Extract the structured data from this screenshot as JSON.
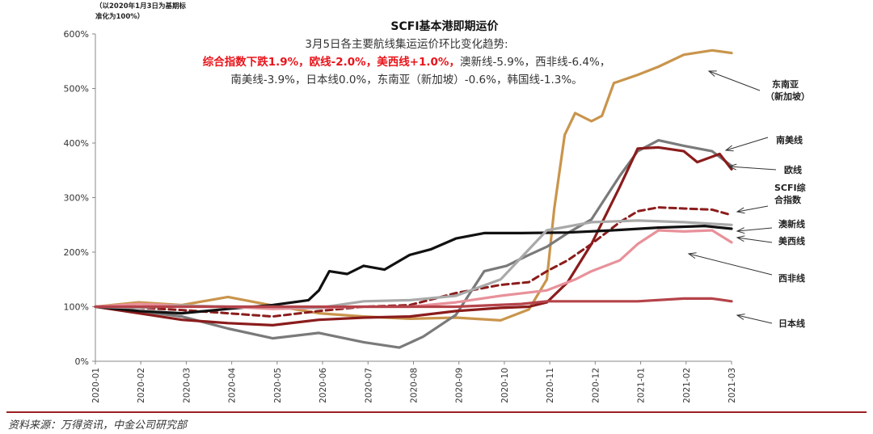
{
  "note": "（以2020年1月3日为基期标准化为100%）",
  "title": "SCFI基本港即期运价",
  "annotation": {
    "intro": "3月5日各主要航线集运运价环比变化趋势:",
    "highlight": "综合指数下跌1.9%，欧线-2.0%，美西线+1.0%，",
    "rest": "澳新线-5.9%，西非线-6.4%，南美线-3.9%，日本线0.0%，东南亚（新加坡）-0.6%，韩国线-1.3%。"
  },
  "source": "资料来源：万得资讯，中金公司研究部",
  "chart_data": {
    "type": "line",
    "title": "SCFI基本港即期运价",
    "y_ticks": [
      "0%",
      "100%",
      "200%",
      "300%",
      "400%",
      "500%",
      "600%"
    ],
    "ylim": [
      0,
      600
    ],
    "x_ticks": [
      "2020-01",
      "2020-02",
      "2020-03",
      "2020-04",
      "2020-05",
      "2020-06",
      "2020-07",
      "2020-08",
      "2020-09",
      "2020-10",
      "2020-11",
      "2020-12",
      "2021-01",
      "2021-02",
      "2021-03"
    ],
    "xlim": [
      "2020-01-03",
      "2021-03-05"
    ],
    "series": [
      {
        "name": "东南亚（新加坡）",
        "color": "#c9954c",
        "dashed": false,
        "points": [
          [
            "2020-01-03",
            100
          ],
          [
            "2020-02-01",
            108
          ],
          [
            "2020-03-01",
            103
          ],
          [
            "2020-04-01",
            118
          ],
          [
            "2020-05-01",
            102
          ],
          [
            "2020-06-01",
            88
          ],
          [
            "2020-07-01",
            82
          ],
          [
            "2020-08-01",
            78
          ],
          [
            "2020-09-01",
            80
          ],
          [
            "2020-10-01",
            75
          ],
          [
            "2020-10-20",
            95
          ],
          [
            "2020-11-01",
            150
          ],
          [
            "2020-11-06",
            280
          ],
          [
            "2020-11-13",
            415
          ],
          [
            "2020-11-20",
            455
          ],
          [
            "2020-12-01",
            440
          ],
          [
            "2020-12-08",
            450
          ],
          [
            "2020-12-16",
            510
          ],
          [
            "2021-01-01",
            525
          ],
          [
            "2021-01-15",
            540
          ],
          [
            "2021-02-01",
            562
          ],
          [
            "2021-02-20",
            570
          ],
          [
            "2021-03-05",
            565
          ]
        ]
      },
      {
        "name": "南美线",
        "color": "#7a7a7a",
        "dashed": false,
        "points": [
          [
            "2020-01-03",
            100
          ],
          [
            "2020-02-01",
            92
          ],
          [
            "2020-03-01",
            82
          ],
          [
            "2020-04-01",
            60
          ],
          [
            "2020-05-01",
            42
          ],
          [
            "2020-06-01",
            52
          ],
          [
            "2020-07-01",
            35
          ],
          [
            "2020-07-25",
            25
          ],
          [
            "2020-08-10",
            45
          ],
          [
            "2020-09-01",
            85
          ],
          [
            "2020-09-20",
            165
          ],
          [
            "2020-10-05",
            175
          ],
          [
            "2020-10-20",
            195
          ],
          [
            "2020-11-01",
            210
          ],
          [
            "2020-11-15",
            235
          ],
          [
            "2020-12-01",
            260
          ],
          [
            "2020-12-20",
            340
          ],
          [
            "2021-01-01",
            385
          ],
          [
            "2021-01-15",
            405
          ],
          [
            "2021-02-01",
            395
          ],
          [
            "2021-02-20",
            385
          ],
          [
            "2021-03-05",
            358
          ]
        ]
      },
      {
        "name": "欧线",
        "color": "#8b1c1c",
        "dashed": false,
        "points": [
          [
            "2020-01-03",
            100
          ],
          [
            "2020-02-01",
            88
          ],
          [
            "2020-03-01",
            76
          ],
          [
            "2020-04-01",
            70
          ],
          [
            "2020-05-01",
            66
          ],
          [
            "2020-06-01",
            76
          ],
          [
            "2020-07-01",
            80
          ],
          [
            "2020-08-01",
            82
          ],
          [
            "2020-09-01",
            92
          ],
          [
            "2020-10-01",
            98
          ],
          [
            "2020-10-20",
            100
          ],
          [
            "2020-11-01",
            108
          ],
          [
            "2020-11-15",
            145
          ],
          [
            "2020-12-01",
            215
          ],
          [
            "2020-12-20",
            320
          ],
          [
            "2021-01-01",
            390
          ],
          [
            "2021-01-15",
            392
          ],
          [
            "2021-02-01",
            385
          ],
          [
            "2021-02-10",
            365
          ],
          [
            "2021-02-25",
            380
          ],
          [
            "2021-03-05",
            352
          ]
        ]
      },
      {
        "name": "SCFI综合指数",
        "color": "#8b1c1c",
        "dashed": true,
        "points": [
          [
            "2020-01-03",
            100
          ],
          [
            "2020-02-01",
            98
          ],
          [
            "2020-03-01",
            94
          ],
          [
            "2020-04-01",
            88
          ],
          [
            "2020-05-01",
            82
          ],
          [
            "2020-06-01",
            92
          ],
          [
            "2020-07-01",
            100
          ],
          [
            "2020-08-01",
            103
          ],
          [
            "2020-09-01",
            125
          ],
          [
            "2020-10-01",
            140
          ],
          [
            "2020-10-20",
            145
          ],
          [
            "2020-11-01",
            165
          ],
          [
            "2020-11-15",
            185
          ],
          [
            "2020-12-01",
            215
          ],
          [
            "2020-12-20",
            255
          ],
          [
            "2021-01-01",
            275
          ],
          [
            "2021-01-15",
            282
          ],
          [
            "2021-02-01",
            280
          ],
          [
            "2021-02-20",
            278
          ],
          [
            "2021-03-05",
            268
          ]
        ]
      },
      {
        "name": "澳新线",
        "color": "#111111",
        "dashed": false,
        "points": [
          [
            "2020-01-03",
            100
          ],
          [
            "2020-02-01",
            92
          ],
          [
            "2020-03-01",
            88
          ],
          [
            "2020-04-01",
            96
          ],
          [
            "2020-05-01",
            103
          ],
          [
            "2020-05-25",
            112
          ],
          [
            "2020-06-01",
            130
          ],
          [
            "2020-06-08",
            165
          ],
          [
            "2020-06-20",
            160
          ],
          [
            "2020-07-01",
            175
          ],
          [
            "2020-07-15",
            168
          ],
          [
            "2020-08-01",
            195
          ],
          [
            "2020-08-15",
            205
          ],
          [
            "2020-09-01",
            225
          ],
          [
            "2020-09-20",
            235
          ],
          [
            "2020-10-15",
            235
          ],
          [
            "2020-11-15",
            236
          ],
          [
            "2020-12-15",
            240
          ],
          [
            "2021-01-15",
            245
          ],
          [
            "2021-02-15",
            248
          ],
          [
            "2021-03-05",
            243
          ]
        ]
      },
      {
        "name": "美西线",
        "color": "#e8919a",
        "dashed": false,
        "points": [
          [
            "2020-01-03",
            100
          ],
          [
            "2020-02-01",
            105
          ],
          [
            "2020-03-01",
            102
          ],
          [
            "2020-04-01",
            100
          ],
          [
            "2020-05-01",
            96
          ],
          [
            "2020-06-01",
            98
          ],
          [
            "2020-07-01",
            100
          ],
          [
            "2020-08-01",
            100
          ],
          [
            "2020-09-01",
            108
          ],
          [
            "2020-10-01",
            120
          ],
          [
            "2020-11-01",
            130
          ],
          [
            "2020-11-20",
            150
          ],
          [
            "2020-12-01",
            165
          ],
          [
            "2020-12-20",
            185
          ],
          [
            "2021-01-01",
            215
          ],
          [
            "2021-01-15",
            240
          ],
          [
            "2021-02-01",
            238
          ],
          [
            "2021-02-20",
            240
          ],
          [
            "2021-03-05",
            218
          ]
        ]
      },
      {
        "name": "西非线",
        "color": "#a9a9a9",
        "dashed": false,
        "points": [
          [
            "2020-01-03",
            100
          ],
          [
            "2020-02-01",
            98
          ],
          [
            "2020-03-01",
            102
          ],
          [
            "2020-04-01",
            100
          ],
          [
            "2020-05-01",
            100
          ],
          [
            "2020-06-01",
            98
          ],
          [
            "2020-07-01",
            110
          ],
          [
            "2020-08-01",
            112
          ],
          [
            "2020-09-01",
            120
          ],
          [
            "2020-10-01",
            150
          ],
          [
            "2020-11-01",
            240
          ],
          [
            "2020-12-01",
            255
          ],
          [
            "2021-01-01",
            258
          ],
          [
            "2021-02-01",
            255
          ],
          [
            "2021-03-05",
            250
          ]
        ]
      },
      {
        "name": "日本线",
        "color": "#b5434a",
        "dashed": false,
        "points": [
          [
            "2020-01-03",
            100
          ],
          [
            "2020-03-01",
            100
          ],
          [
            "2020-05-01",
            100
          ],
          [
            "2020-07-01",
            100
          ],
          [
            "2020-09-01",
            100
          ],
          [
            "2020-10-15",
            105
          ],
          [
            "2020-11-01",
            110
          ],
          [
            "2020-12-01",
            110
          ],
          [
            "2021-01-01",
            110
          ],
          [
            "2021-02-01",
            115
          ],
          [
            "2021-02-20",
            115
          ],
          [
            "2021-03-05",
            110
          ]
        ]
      }
    ],
    "labels": [
      {
        "text": "东南亚",
        "text2": "（新加坡）"
      },
      {
        "text": "南美线"
      },
      {
        "text": "欧线"
      },
      {
        "text": "SCFI综",
        "text2": "合指数"
      },
      {
        "text": "澳新线"
      },
      {
        "text": "美西线"
      },
      {
        "text": "西非线"
      },
      {
        "text": "日本线"
      }
    ]
  }
}
